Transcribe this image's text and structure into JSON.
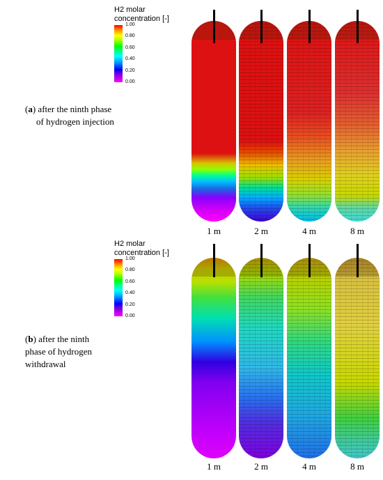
{
  "legend": {
    "title_line1": "H2 molar",
    "title_line2": "concentration [-]",
    "ticks": [
      "1.00",
      "0.80",
      "0.60",
      "0.40",
      "0.20",
      "0.00"
    ],
    "colormap": [
      "#ff00ff",
      "#7000e0",
      "#0000ff",
      "#00a0ff",
      "#00ffff",
      "#00ff80",
      "#00ff00",
      "#c0ff00",
      "#ffff00",
      "#ffa000",
      "#ff0000"
    ]
  },
  "panels": [
    {
      "label_letter": "a",
      "caption_line1": ") after the ninth phase",
      "caption_line2": "of hydrogen injection",
      "columns": [
        {
          "label": "1 m",
          "mesh": false,
          "stops": [
            [
              0,
              "#dd1111"
            ],
            [
              0.66,
              "#dd1111"
            ],
            [
              0.71,
              "#d8c400"
            ],
            [
              0.74,
              "#90ff00"
            ],
            [
              0.77,
              "#00ff90"
            ],
            [
              0.8,
              "#00c0ff"
            ],
            [
              0.84,
              "#2060e0"
            ],
            [
              0.88,
              "#8800ff"
            ],
            [
              0.94,
              "#d000f8"
            ],
            [
              1,
              "#ff00ff"
            ]
          ]
        },
        {
          "label": "2 m",
          "mesh": true,
          "stops": [
            [
              0,
              "#dd1111"
            ],
            [
              0.6,
              "#dd1111"
            ],
            [
              0.66,
              "#e65000"
            ],
            [
              0.72,
              "#ecc000"
            ],
            [
              0.78,
              "#9de000"
            ],
            [
              0.83,
              "#00e090"
            ],
            [
              0.88,
              "#00b0ff"
            ],
            [
              0.93,
              "#2050f0"
            ],
            [
              1,
              "#4000d0"
            ]
          ]
        },
        {
          "label": "4 m",
          "mesh": true,
          "stops": [
            [
              0,
              "#dd1111"
            ],
            [
              0.46,
              "#dd2222"
            ],
            [
              0.58,
              "#e85020"
            ],
            [
              0.7,
              "#e8a020"
            ],
            [
              0.79,
              "#d8d000"
            ],
            [
              0.87,
              "#90e030"
            ],
            [
              0.93,
              "#30d8b0"
            ],
            [
              1,
              "#00b8e8"
            ]
          ]
        },
        {
          "label": "8 m",
          "mesh": true,
          "stops": [
            [
              0,
              "#dd1111"
            ],
            [
              0.36,
              "#dd3030"
            ],
            [
              0.52,
              "#e36030"
            ],
            [
              0.65,
              "#e8a030"
            ],
            [
              0.77,
              "#e0d020"
            ],
            [
              0.87,
              "#c8d800"
            ],
            [
              0.93,
              "#60d8a0"
            ],
            [
              1,
              "#40d8d8"
            ]
          ]
        }
      ]
    },
    {
      "label_letter": "b",
      "caption_line1": ") after the ninth",
      "caption_line2": "phase of hydrogen",
      "caption_line3": "withdrawal",
      "columns": [
        {
          "label": "1 m",
          "mesh": false,
          "stops": [
            [
              0,
              "#e09000"
            ],
            [
              0.06,
              "#c8cc00"
            ],
            [
              0.12,
              "#b8e000"
            ],
            [
              0.2,
              "#40e040"
            ],
            [
              0.3,
              "#00e0b0"
            ],
            [
              0.42,
              "#0090ff"
            ],
            [
              0.52,
              "#3000e0"
            ],
            [
              0.62,
              "#8000f0"
            ],
            [
              0.8,
              "#b000f8"
            ],
            [
              1,
              "#e000ff"
            ]
          ]
        },
        {
          "label": "2 m",
          "mesh": true,
          "stops": [
            [
              0,
              "#ccaa00"
            ],
            [
              0.08,
              "#a8d800"
            ],
            [
              0.2,
              "#40d860"
            ],
            [
              0.35,
              "#20d8c0"
            ],
            [
              0.55,
              "#30b8e8"
            ],
            [
              0.7,
              "#2870f0"
            ],
            [
              0.82,
              "#5030e0"
            ],
            [
              1,
              "#8000e0"
            ]
          ]
        },
        {
          "label": "4 m",
          "mesh": true,
          "stops": [
            [
              0,
              "#ccaa10"
            ],
            [
              0.1,
              "#b8d000"
            ],
            [
              0.25,
              "#90e020"
            ],
            [
              0.42,
              "#30d880"
            ],
            [
              0.58,
              "#10c8c8"
            ],
            [
              0.78,
              "#20a8e0"
            ],
            [
              1,
              "#2070e8"
            ]
          ]
        },
        {
          "label": "8 m",
          "mesh": true,
          "stops": [
            [
              0,
              "#c89a30"
            ],
            [
              0.1,
              "#d8c040"
            ],
            [
              0.35,
              "#e0d040"
            ],
            [
              0.62,
              "#c8d800"
            ],
            [
              0.8,
              "#40d040"
            ],
            [
              0.92,
              "#40c8a0"
            ],
            [
              1,
              "#40c8c8"
            ]
          ]
        }
      ]
    }
  ]
}
